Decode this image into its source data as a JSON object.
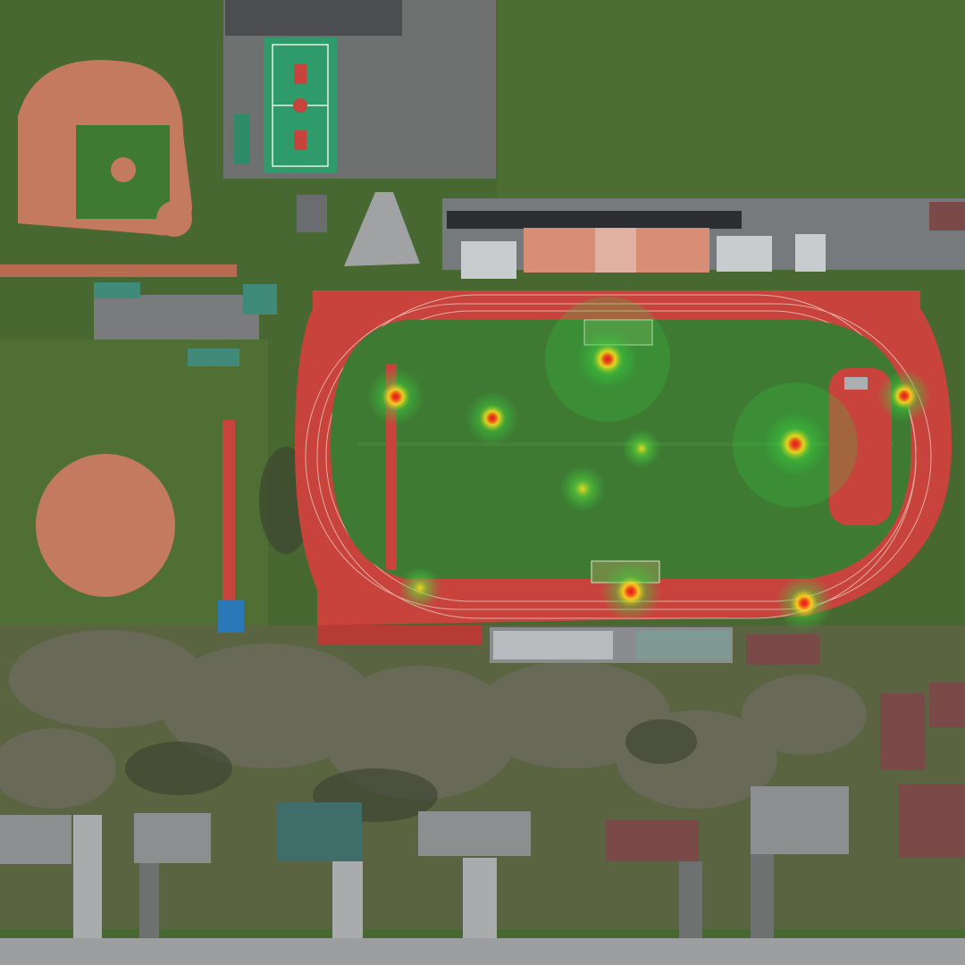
{
  "map": {
    "view": "satellite",
    "track_label": "",
    "palette": {
      "grass_dark": "#3f5e2c",
      "grass": "#4e7234",
      "infield": "#3f7a33",
      "dirt": "#c47a5e",
      "track": "#c8433c",
      "lane_line": "#f1d8d2",
      "asphalt": "#6f7171",
      "road": "#9c9ea0",
      "court": "#2f9a6a",
      "roof_gray": "#8d8e90",
      "roof_brown": "#7a4a48",
      "roof_green": "#3f6e6a",
      "bleacher": "#c9ccce",
      "tree": "#5b5a4c"
    }
  },
  "heatmap": {
    "type": "heatmap",
    "hotspots": [
      {
        "id": "north-endzone",
        "intensity": 1.0
      },
      {
        "id": "northwest-goal",
        "intensity": 0.9
      },
      {
        "id": "west-midfield",
        "intensity": 0.8
      },
      {
        "id": "east-infield",
        "intensity": 1.0
      },
      {
        "id": "northeast-track",
        "intensity": 0.8
      },
      {
        "id": "center-field",
        "intensity": 0.35
      },
      {
        "id": "center-south",
        "intensity": 0.55
      },
      {
        "id": "south-track",
        "intensity": 0.9
      },
      {
        "id": "southwest-track",
        "intensity": 0.4
      },
      {
        "id": "southeast-gate",
        "intensity": 0.75
      }
    ],
    "colors": {
      "low": "#2ecc40",
      "mid": "#ffe21a",
      "high": "#e8141c"
    }
  }
}
